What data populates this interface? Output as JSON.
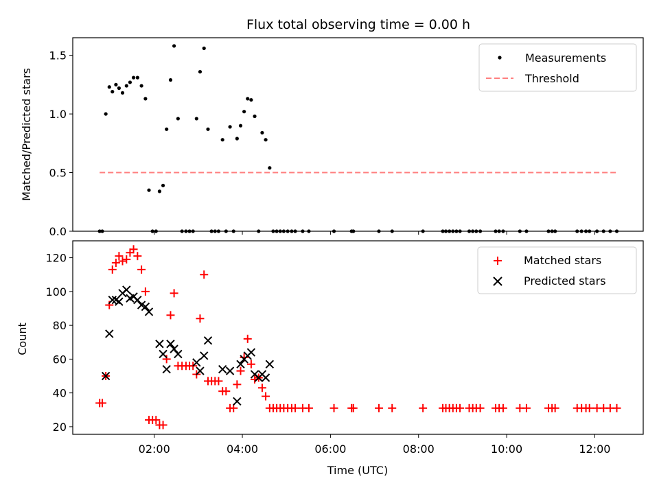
{
  "chart_data": [
    {
      "type": "scatter",
      "title": "Flux total observing time = 0.00 h",
      "xlabel": "",
      "ylabel": "Matched/Predicted stars",
      "xlim": [
        0.15,
        13.1
      ],
      "ylim": [
        0,
        1.65
      ],
      "yticks": [
        0.0,
        0.5,
        1.0,
        1.5
      ],
      "ytick_labels": [
        "0.0",
        "0.5",
        "1.0",
        "1.5"
      ],
      "xticks": [
        2,
        4,
        6,
        8,
        10,
        12
      ],
      "grid": false,
      "legend": "top-right",
      "series": [
        {
          "name": "Measurements",
          "marker": "dot",
          "color": "#000000",
          "x": [
            0.76,
            0.82,
            0.9,
            0.98,
            1.05,
            1.13,
            1.2,
            1.28,
            1.37,
            1.45,
            1.53,
            1.62,
            1.71,
            1.8,
            1.88,
            1.96,
            2.04,
            2.12,
            2.2,
            2.28,
            2.37,
            2.45,
            2.54,
            2.63,
            2.72,
            2.8,
            2.88,
            2.96,
            3.04,
            3.13,
            3.22,
            3.3,
            3.38,
            3.46,
            3.55,
            3.63,
            3.72,
            3.8,
            3.88,
            3.96,
            4.04,
            4.12,
            4.2,
            4.28,
            4.37,
            4.45,
            4.53,
            4.62,
            4.7,
            4.78,
            4.86,
            4.94,
            5.03,
            5.12,
            5.2,
            5.37,
            5.51,
            6.08,
            6.48,
            6.52,
            7.1,
            7.4,
            8.1,
            8.55,
            8.62,
            8.7,
            8.78,
            8.86,
            8.94,
            9.15,
            9.23,
            9.31,
            9.4,
            9.75,
            9.83,
            9.92,
            10.3,
            10.45,
            10.95,
            11.03,
            11.1,
            11.6,
            11.7,
            11.8,
            11.88,
            12.05,
            12.2,
            12.35,
            12.5
          ],
          "y": [
            0,
            0,
            1.0,
            1.23,
            1.19,
            1.25,
            1.22,
            1.18,
            1.24,
            1.27,
            1.31,
            1.31,
            1.24,
            1.13,
            0.35,
            0,
            0,
            0.34,
            0.39,
            0.87,
            1.29,
            1.58,
            0.96,
            0,
            0,
            0,
            0,
            0.96,
            1.36,
            1.56,
            0.87,
            0,
            0,
            0,
            0.78,
            0,
            0.89,
            0,
            0.79,
            0.9,
            1.02,
            1.13,
            1.12,
            0.98,
            0,
            0.84,
            0.78,
            0.54,
            0,
            0,
            0,
            0,
            0,
            0,
            0,
            0,
            0,
            0,
            0,
            0,
            0,
            0,
            0,
            0,
            0,
            0,
            0,
            0,
            0,
            0,
            0,
            0,
            0,
            0,
            0,
            0,
            0,
            0,
            0,
            0,
            0,
            0,
            0,
            0,
            0,
            0,
            0,
            0,
            0
          ]
        },
        {
          "name": "Threshold",
          "style": "dashed",
          "color": "#ff7f7f",
          "x": [
            0.76,
            12.5
          ],
          "y": [
            0.5,
            0.5
          ]
        }
      ]
    },
    {
      "type": "scatter",
      "title": "",
      "xlabel": "Time (UTC)",
      "ylabel": "Count",
      "xlim": [
        0.15,
        13.1
      ],
      "ylim": [
        15.5,
        130
      ],
      "yticks": [
        20,
        40,
        60,
        80,
        100,
        120
      ],
      "ytick_labels": [
        "20",
        "40",
        "60",
        "80",
        "100",
        "120"
      ],
      "xticks": [
        2,
        4,
        6,
        8,
        10,
        12
      ],
      "xtick_labels": [
        "02:00",
        "04:00",
        "06:00",
        "08:00",
        "10:00",
        "12:00"
      ],
      "grid": false,
      "legend": "top-right",
      "series": [
        {
          "name": "Matched stars",
          "marker": "plus",
          "color": "#ff0000",
          "x": [
            0.76,
            0.82,
            0.9,
            0.98,
            1.05,
            1.13,
            1.2,
            1.28,
            1.37,
            1.45,
            1.53,
            1.62,
            1.71,
            1.8,
            1.88,
            1.96,
            2.04,
            2.12,
            2.2,
            2.28,
            2.37,
            2.45,
            2.54,
            2.63,
            2.72,
            2.8,
            2.88,
            2.96,
            3.04,
            3.13,
            3.22,
            3.3,
            3.38,
            3.46,
            3.55,
            3.63,
            3.72,
            3.8,
            3.88,
            3.96,
            4.04,
            4.12,
            4.2,
            4.28,
            4.37,
            4.45,
            4.53,
            4.62,
            4.7,
            4.78,
            4.86,
            4.94,
            5.03,
            5.12,
            5.2,
            5.37,
            5.51,
            6.08,
            6.48,
            6.52,
            7.1,
            7.4,
            8.1,
            8.55,
            8.62,
            8.7,
            8.78,
            8.86,
            8.94,
            9.15,
            9.23,
            9.31,
            9.4,
            9.75,
            9.83,
            9.92,
            10.3,
            10.45,
            10.95,
            11.03,
            11.1,
            11.6,
            11.7,
            11.8,
            11.88,
            12.05,
            12.2,
            12.35,
            12.5
          ],
          "y": [
            34,
            34,
            50,
            92,
            113,
            117,
            121,
            118,
            119,
            123,
            125,
            121,
            113,
            100,
            24,
            24,
            24,
            21,
            21,
            60,
            86,
            99,
            56,
            56,
            56,
            56,
            56,
            51,
            84,
            110,
            47,
            47,
            47,
            47,
            41,
            41,
            31,
            31,
            45,
            53,
            61,
            72,
            57,
            48,
            49,
            43,
            38,
            31,
            31,
            31,
            31,
            31,
            31,
            31,
            31,
            31,
            31,
            31,
            31,
            31,
            31,
            31,
            31,
            31,
            31,
            31,
            31,
            31,
            31,
            31,
            31,
            31,
            31,
            31,
            31,
            31,
            31,
            31,
            31,
            31,
            31,
            31,
            31,
            31,
            31,
            31,
            31,
            31,
            31
          ]
        },
        {
          "name": "Predicted stars",
          "marker": "x",
          "color": "#000000",
          "x": [
            0.9,
            0.98,
            1.05,
            1.13,
            1.2,
            1.28,
            1.37,
            1.45,
            1.53,
            1.62,
            1.71,
            1.8,
            1.88,
            2.12,
            2.2,
            2.28,
            2.37,
            2.45,
            2.54,
            2.96,
            3.04,
            3.13,
            3.22,
            3.55,
            3.72,
            3.88,
            3.96,
            4.04,
            4.12,
            4.2,
            4.28,
            4.37,
            4.45,
            4.53,
            4.62
          ],
          "y": [
            50,
            75,
            95,
            95,
            94,
            99,
            101,
            96,
            97,
            95,
            92,
            91,
            88,
            69,
            63,
            54,
            69,
            66,
            63,
            58,
            53,
            62,
            71,
            54,
            53,
            35,
            57,
            60,
            62,
            64,
            51,
            49,
            51,
            49,
            57
          ]
        }
      ]
    }
  ]
}
